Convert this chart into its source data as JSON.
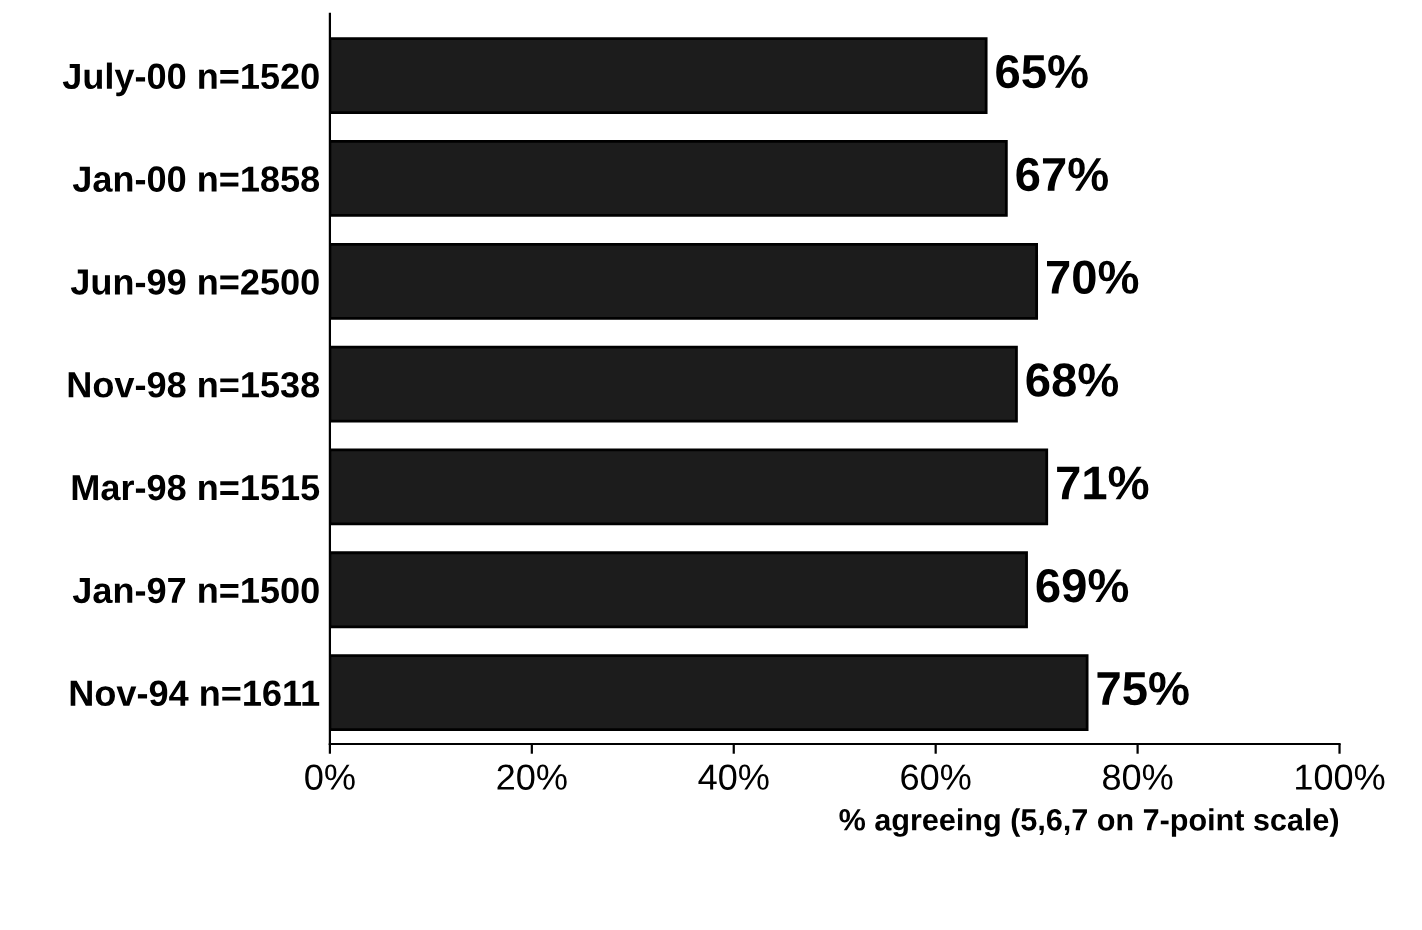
{
  "chart_data": {
    "type": "bar",
    "orientation": "horizontal",
    "categories": [
      "July-00 n=1520",
      "Jan-00 n=1858",
      "Jun-99 n=2500",
      "Nov-98 n=1538",
      "Mar-98 n=1515",
      "Jan-97 n=1500",
      "Nov-94 n=1611"
    ],
    "values": [
      65,
      67,
      70,
      68,
      71,
      69,
      75
    ],
    "value_labels": [
      "65%",
      "67%",
      "70%",
      "68%",
      "71%",
      "69%",
      "75%"
    ],
    "color": "#1c1c1c",
    "xlabel": "% agreeing (5,6,7 on 7-point scale)",
    "xlim": [
      0,
      100
    ],
    "xticks": [
      {
        "value": 0,
        "label": "0%"
      },
      {
        "value": 20,
        "label": "20%"
      },
      {
        "value": 40,
        "label": "40%"
      },
      {
        "value": 60,
        "label": "60%"
      },
      {
        "value": 80,
        "label": "80%"
      },
      {
        "value": 100,
        "label": "100%"
      }
    ],
    "grid": false
  }
}
